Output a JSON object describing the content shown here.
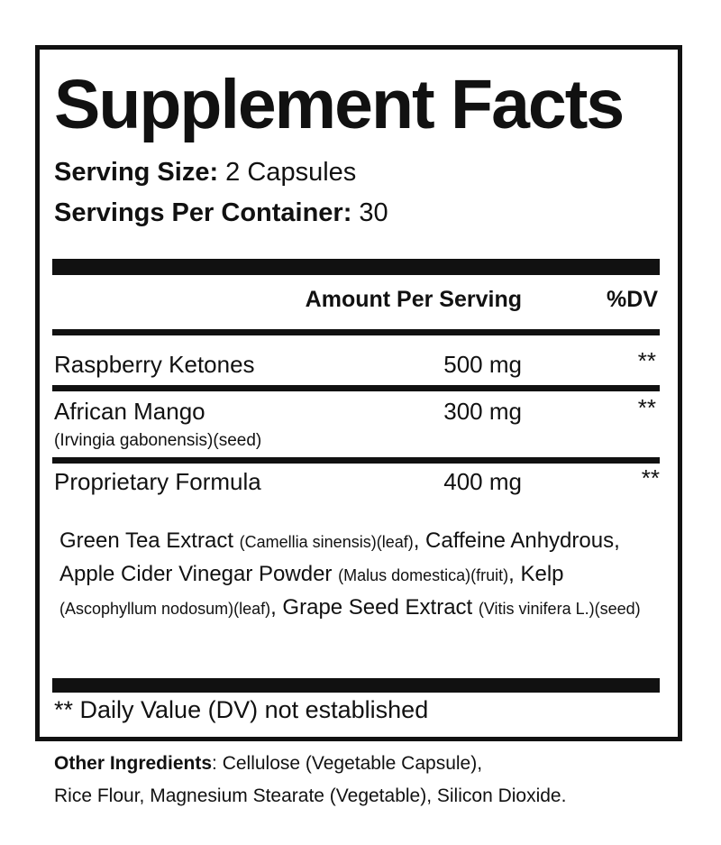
{
  "title": "Supplement Facts",
  "serving_size": {
    "label": "Serving Size:",
    "value": " 2 Capsules"
  },
  "servings_per_container": {
    "label": "Servings Per Container:",
    "value": " 30"
  },
  "table": {
    "headers": {
      "amount": "Amount Per Serving",
      "dv": "%DV"
    },
    "rows": [
      {
        "name": "Raspberry Ketones",
        "sub": "",
        "amount": "500 mg",
        "dv": "**"
      },
      {
        "name": "African Mango",
        "sub": "(Irvingia gabonensis)(seed)",
        "amount": "300 mg",
        "dv": "**"
      },
      {
        "name": "Proprietary Formula",
        "sub": "",
        "amount": "400 mg",
        "dv": "**"
      }
    ]
  },
  "formula": [
    {
      "t": "Green Tea Extract ",
      "s": false
    },
    {
      "t": "(Camellia sinensis)(leaf)",
      "s": true
    },
    {
      "t": ", Caffeine Anhydrous, Apple Cider Vinegar Powder ",
      "s": false
    },
    {
      "t": "(Malus domestica)(fruit)",
      "s": true
    },
    {
      "t": ", Kelp ",
      "s": false
    },
    {
      "t": "(Ascophyllum nodosum)(leaf)",
      "s": true
    },
    {
      "t": ", Grape Seed Extract ",
      "s": false
    },
    {
      "t": "(Vitis vinifera L.)(seed)",
      "s": true
    }
  ],
  "footnote": "** Daily Value (DV) not established",
  "other_ingredients": {
    "label": "Other Ingredients",
    "line1": ": Cellulose (Vegetable Capsule),",
    "line2": "Rice Flour, Magnesium Stearate (Vegetable), Silicon Dioxide."
  }
}
